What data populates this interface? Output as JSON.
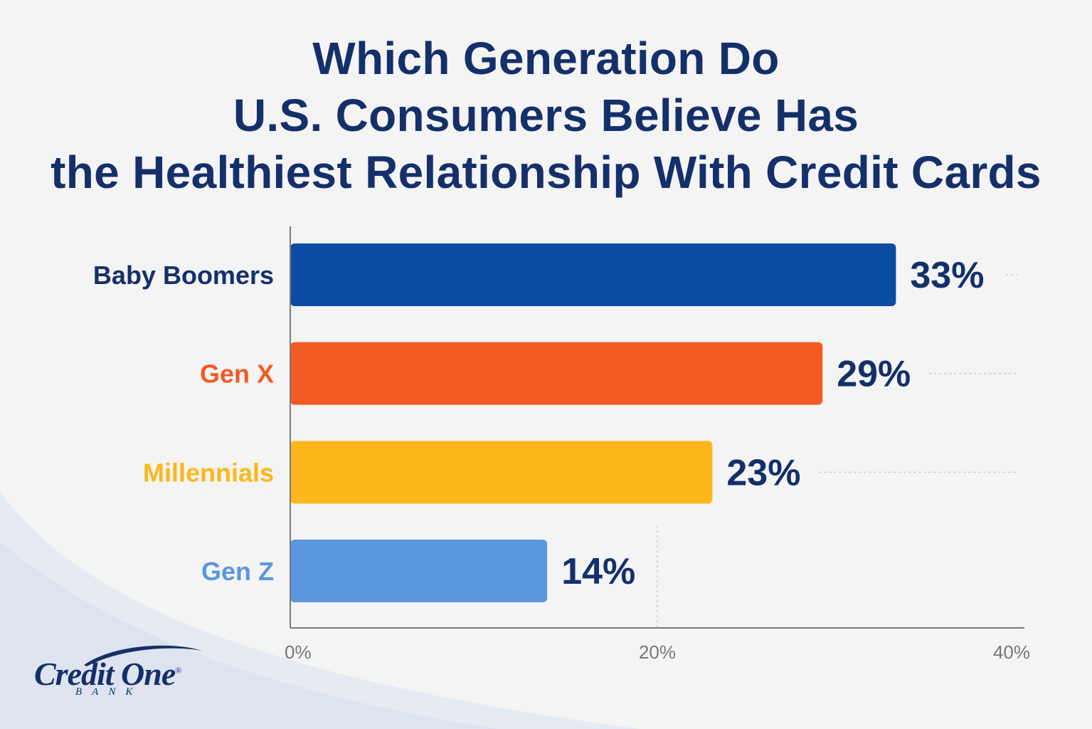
{
  "title_lines": [
    "Which Generation Do",
    "U.S. Consumers Believe Has",
    "the Healthiest Relationship With Credit Cards"
  ],
  "chart_data": {
    "type": "bar",
    "orientation": "horizontal",
    "categories": [
      "Baby Boomers",
      "Gen X",
      "Millennials",
      "Gen Z"
    ],
    "values": [
      33,
      29,
      23,
      14
    ],
    "value_labels": [
      "33%",
      "29%",
      "23%",
      "14%"
    ],
    "colors": [
      "#0a4ba3",
      "#f45a24",
      "#fdb71c",
      "#5b97de"
    ],
    "label_colors": [
      "#14306b",
      "#f45a24",
      "#fdb71c",
      "#5b97de"
    ],
    "xlim": [
      0,
      40
    ],
    "x_ticks": [
      0,
      20,
      40
    ],
    "x_tick_labels": [
      "0%",
      "20%",
      "40%"
    ],
    "xlabel": "",
    "ylabel": "",
    "grid": "dotted reference lines",
    "legend": "none"
  },
  "logo": {
    "name": "Credit One",
    "subtitle": "BANK",
    "registered": "®"
  },
  "colors": {
    "title": "#14306b",
    "axis": "#777777",
    "background": "#f4f4f4"
  }
}
